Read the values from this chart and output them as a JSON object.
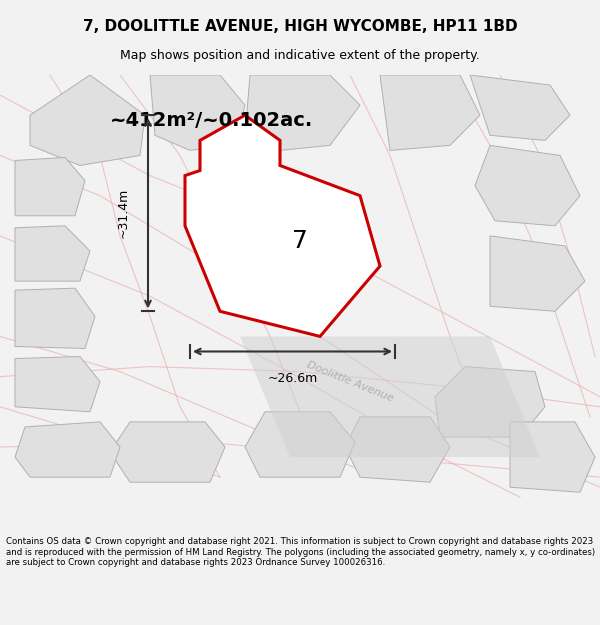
{
  "title": "7, DOOLITTLE AVENUE, HIGH WYCOMBE, HP11 1BD",
  "subtitle": "Map shows position and indicative extent of the property.",
  "area_text": "~412m²/~0.102ac.",
  "label_7": "7",
  "dim_vertical": "~31.4m",
  "dim_horizontal": "~26.6m",
  "street_label": "Doolittle Avenue",
  "footer": "Contains OS data © Crown copyright and database right 2021. This information is subject to Crown copyright and database rights 2023 and is reproduced with the permission of HM Land Registry. The polygons (including the associated geometry, namely x, y co-ordinates) are subject to Crown copyright and database rights 2023 Ordnance Survey 100026316.",
  "bg_color": "#f2f2f2",
  "map_bg": "#f5f5f5",
  "plot_fill": "#e8e8e8",
  "plot_edge": "#cc0000",
  "other_fill": "#e0e0e0",
  "other_edge": "#b0b0b0",
  "road_color": "#d0d0d0",
  "faint_edge": "#e8b0b0",
  "dim_color": "#333333",
  "title_color": "#000000",
  "footer_color": "#000000"
}
